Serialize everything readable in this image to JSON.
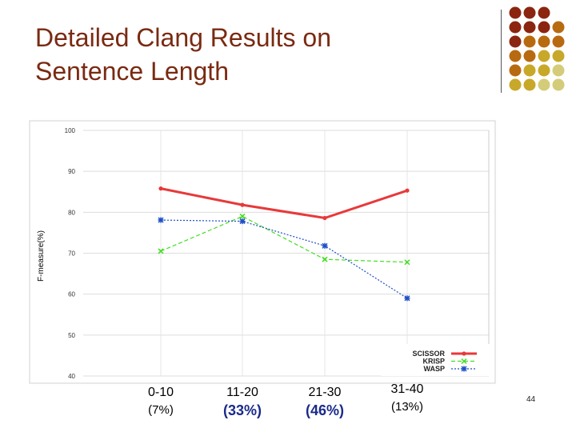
{
  "slide": {
    "title_line1": "Detailed Clang Results on",
    "title_line2": "Sentence Length",
    "page_number": "44"
  },
  "colors": {
    "title": "#7a2a12",
    "emphasis_pct": "#1a2a8a",
    "scissor": "#e8393a",
    "krisp": "#44dd22",
    "wasp": "#1f4fc8",
    "deco_dots": [
      "#8b2510",
      "#b86a10",
      "#c8a828",
      "#d4cc78"
    ]
  },
  "x_categories": [
    {
      "range": "0-10",
      "pct": "(7%)",
      "emph": false
    },
    {
      "range": "11-20",
      "pct": "(33%)",
      "emph": true
    },
    {
      "range": "21-30",
      "pct": "(46%)",
      "emph": true
    },
    {
      "range": "31-40",
      "pct": "(13%)",
      "emph": false
    }
  ],
  "chart_data": {
    "type": "line",
    "categories": [
      "0-10",
      "11-20",
      "21-30",
      "31-40"
    ],
    "ylabel": "F-measure(%)",
    "ylim": [
      40,
      100
    ],
    "yticks": [
      40,
      50,
      60,
      70,
      80,
      90,
      100
    ],
    "grid": true,
    "legend_position": "bottom-right",
    "series": [
      {
        "name": "SCISSOR",
        "values": [
          85.8,
          81.8,
          78.6,
          85.3
        ],
        "color": "#e8393a",
        "style": "solid",
        "marker": "dot"
      },
      {
        "name": "KRISP",
        "values": [
          70.5,
          79.0,
          68.5,
          67.8
        ],
        "color": "#44dd22",
        "style": "dashed",
        "marker": "x"
      },
      {
        "name": "WASP",
        "values": [
          78.1,
          77.8,
          71.8,
          59.0
        ],
        "color": "#1f4fc8",
        "style": "dotted",
        "marker": "star"
      }
    ]
  }
}
